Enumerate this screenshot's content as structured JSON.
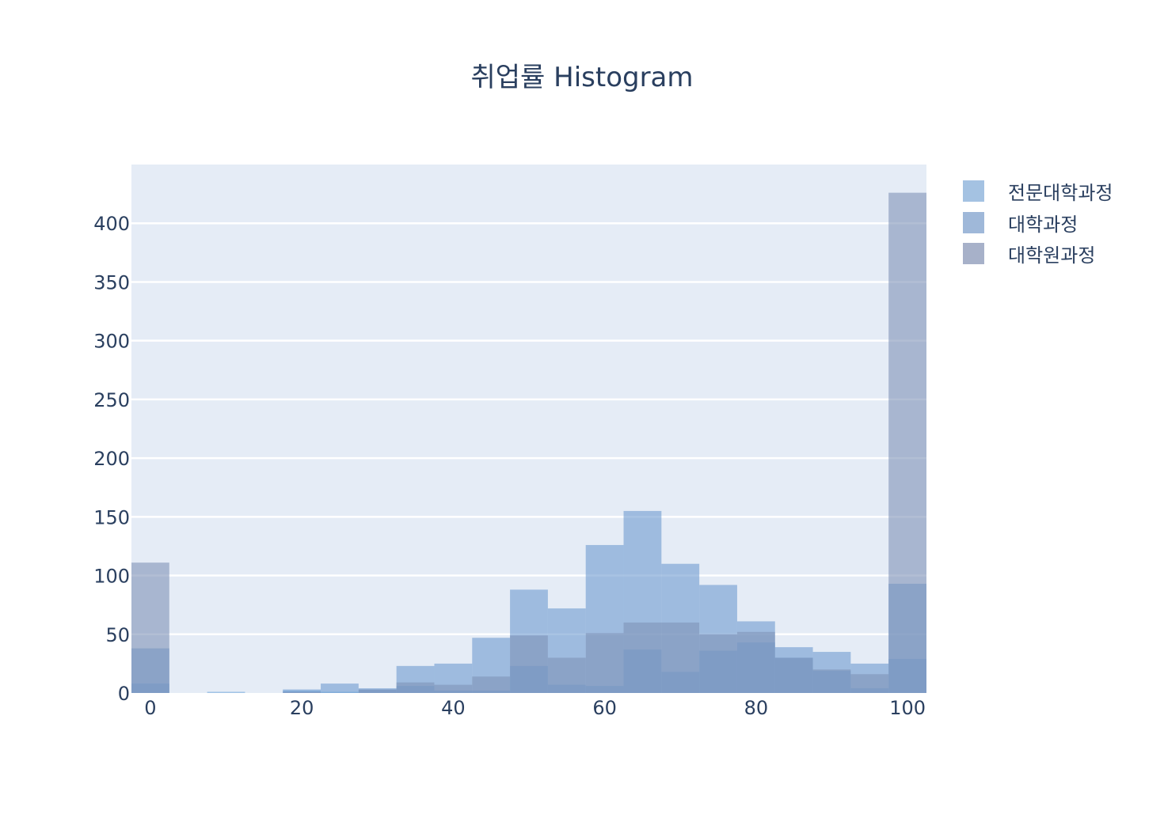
{
  "chart_data": {
    "type": "histogram",
    "title": "취업률 Histogram",
    "xlabel": "",
    "ylabel": "",
    "bin_width": 5,
    "bin_starts": [
      -2.5,
      2.5,
      7.5,
      12.5,
      17.5,
      22.5,
      27.5,
      32.5,
      37.5,
      42.5,
      47.5,
      52.5,
      57.5,
      62.5,
      67.5,
      72.5,
      77.5,
      82.5,
      87.5,
      92.5,
      97.5
    ],
    "xlim": [
      -2.5,
      102.5
    ],
    "ylim": [
      0,
      450
    ],
    "x_ticks": [
      0,
      20,
      40,
      60,
      80,
      100
    ],
    "y_ticks": [
      0,
      50,
      100,
      150,
      200,
      250,
      300,
      350,
      400
    ],
    "barmode": "overlay",
    "grid": true,
    "legend_position": "top-right",
    "plot_background": "#e5ecf6",
    "series": [
      {
        "name": "전문대학과정",
        "color": "#6fa8dc",
        "values": [
          8,
          0,
          1,
          0,
          2,
          1,
          3,
          6,
          2,
          2,
          23,
          7,
          6,
          37,
          18,
          36,
          43,
          30,
          19,
          4,
          29
        ]
      },
      {
        "name": "대학과정",
        "color": "#6e9bd0",
        "values": [
          38,
          0,
          0,
          0,
          3,
          8,
          4,
          23,
          25,
          47,
          88,
          72,
          126,
          155,
          110,
          92,
          61,
          39,
          35,
          25,
          93
        ]
      },
      {
        "name": "대학원과정",
        "color": "#7f93b8",
        "values": [
          111,
          0,
          0,
          0,
          1,
          0,
          3,
          9,
          7,
          14,
          49,
          30,
          51,
          60,
          60,
          50,
          52,
          30,
          20,
          16,
          426
        ]
      }
    ]
  },
  "legend": {
    "items": [
      {
        "label": "전문대학과정",
        "color": "#a4c2e2"
      },
      {
        "label": "대학과정",
        "color": "#9fb8d9"
      },
      {
        "label": "대학원과정",
        "color": "#a7b1c9"
      }
    ]
  }
}
